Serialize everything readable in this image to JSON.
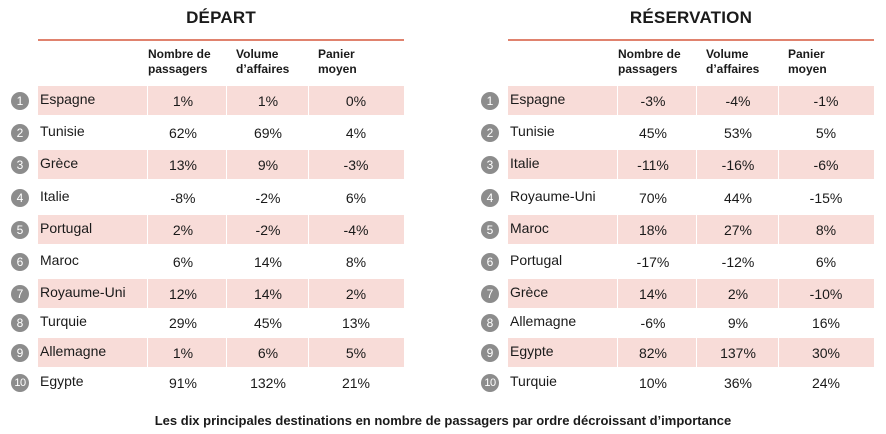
{
  "caption": "Les dix principales destinations en nombre de passagers par ordre décroissant d’importance",
  "colors": {
    "accent_rule": "#e0826e",
    "band": "#f8dcd8",
    "badge": "#8c8c8c"
  },
  "departure": {
    "title": "DÉPART",
    "headers": {
      "passengers": [
        "Nombre de",
        "passagers"
      ],
      "turnover": [
        "Volume",
        "d’affaires"
      ],
      "basket": [
        "Panier",
        "moyen"
      ]
    },
    "rows": [
      {
        "rank": "1",
        "country": "Espagne",
        "passengers": "1%",
        "turnover": "1%",
        "basket": "0%"
      },
      {
        "rank": "2",
        "country": "Tunisie",
        "passengers": "62%",
        "turnover": "69%",
        "basket": "4%"
      },
      {
        "rank": "3",
        "country": "Grèce",
        "passengers": "13%",
        "turnover": "9%",
        "basket": "-3%"
      },
      {
        "rank": "4",
        "country": "Italie",
        "passengers": "-8%",
        "turnover": "-2%",
        "basket": "6%"
      },
      {
        "rank": "5",
        "country": "Portugal",
        "passengers": "2%",
        "turnover": "-2%",
        "basket": "-4%"
      },
      {
        "rank": "6",
        "country": "Maroc",
        "passengers": "6%",
        "turnover": "14%",
        "basket": "8%"
      },
      {
        "rank": "7",
        "country": "Royaume-Uni",
        "passengers": "12%",
        "turnover": "14%",
        "basket": "2%"
      },
      {
        "rank": "8",
        "country": "Turquie",
        "passengers": "29%",
        "turnover": "45%",
        "basket": "13%"
      },
      {
        "rank": "9",
        "country": "Allemagne",
        "passengers": "1%",
        "turnover": "6%",
        "basket": "5%"
      },
      {
        "rank": "10",
        "country": "Egypte",
        "passengers": "91%",
        "turnover": "132%",
        "basket": "21%"
      }
    ]
  },
  "reservation": {
    "title": "RÉSERVATION",
    "headers": {
      "passengers": [
        "Nombre de",
        "passagers"
      ],
      "turnover": [
        "Volume",
        "d’affaires"
      ],
      "basket": [
        "Panier",
        "moyen"
      ]
    },
    "rows": [
      {
        "rank": "1",
        "country": "Espagne",
        "passengers": "-3%",
        "turnover": "-4%",
        "basket": "-1%"
      },
      {
        "rank": "2",
        "country": "Tunisie",
        "passengers": "45%",
        "turnover": "53%",
        "basket": "5%"
      },
      {
        "rank": "3",
        "country": "Italie",
        "passengers": "-11%",
        "turnover": "-16%",
        "basket": "-6%"
      },
      {
        "rank": "4",
        "country": "Royaume-Uni",
        "passengers": "70%",
        "turnover": "44%",
        "basket": "-15%"
      },
      {
        "rank": "5",
        "country": "Maroc",
        "passengers": "18%",
        "turnover": "27%",
        "basket": "8%"
      },
      {
        "rank": "6",
        "country": "Portugal",
        "passengers": "-17%",
        "turnover": "-12%",
        "basket": "6%"
      },
      {
        "rank": "7",
        "country": "Grèce",
        "passengers": "14%",
        "turnover": "2%",
        "basket": "-10%"
      },
      {
        "rank": "8",
        "country": "Allemagne",
        "passengers": "-6%",
        "turnover": "9%",
        "basket": "16%"
      },
      {
        "rank": "9",
        "country": "Egypte",
        "passengers": "82%",
        "turnover": "137%",
        "basket": "30%"
      },
      {
        "rank": "10",
        "country": "Turquie",
        "passengers": "10%",
        "turnover": "36%",
        "basket": "24%"
      }
    ]
  }
}
